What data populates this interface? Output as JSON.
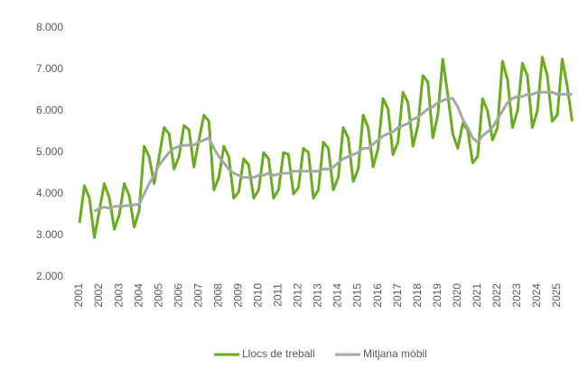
{
  "chart_data": {
    "type": "line",
    "categories": [
      "2001",
      null,
      null,
      null,
      "2002",
      null,
      null,
      null,
      "2003",
      null,
      null,
      null,
      "2004",
      null,
      null,
      null,
      "2005",
      null,
      null,
      null,
      "2006",
      null,
      null,
      null,
      "2007",
      null,
      null,
      null,
      "2008",
      null,
      null,
      null,
      "2009",
      null,
      null,
      null,
      "2010",
      null,
      null,
      null,
      "2011",
      null,
      null,
      null,
      "2012",
      null,
      null,
      null,
      "2013",
      null,
      null,
      null,
      "2014",
      null,
      null,
      null,
      "2015",
      null,
      null,
      null,
      "2016",
      null,
      null,
      null,
      "2017",
      null,
      null,
      null,
      "2018",
      null,
      null,
      null,
      "2019",
      null,
      null,
      null,
      "2020",
      null,
      null,
      null,
      "2021",
      null,
      null,
      null,
      "2022",
      null,
      null,
      null,
      "2023",
      null,
      null,
      null,
      "2024",
      null,
      null,
      null,
      "2025",
      null,
      null,
      null
    ],
    "series": [
      {
        "name": "Llocs de treball",
        "color": "#6aab1f",
        "values": [
          3300,
          4200,
          3900,
          2950,
          3600,
          4250,
          3900,
          3150,
          3500,
          4250,
          3950,
          3200,
          3600,
          5150,
          4900,
          4250,
          4900,
          5600,
          5450,
          4600,
          4900,
          5650,
          5550,
          4650,
          5300,
          5900,
          5750,
          4100,
          4400,
          5150,
          4900,
          3900,
          4050,
          4850,
          4700,
          3900,
          4100,
          5000,
          4850,
          3900,
          4100,
          5000,
          4950,
          4000,
          4150,
          5100,
          5000,
          3900,
          4100,
          5250,
          5100,
          4100,
          4400,
          5600,
          5350,
          4300,
          4600,
          5900,
          5600,
          4650,
          5100,
          6300,
          6050,
          4950,
          5250,
          6450,
          6200,
          5150,
          5650,
          6850,
          6700,
          5350,
          5900,
          7250,
          6400,
          5450,
          5100,
          5700,
          5550,
          4750,
          4900,
          6300,
          6000,
          5300,
          5600,
          7200,
          6750,
          5600,
          6000,
          7150,
          6850,
          5600,
          6000,
          7300,
          6850,
          5750,
          5900,
          7250,
          6600,
          5750
        ]
      },
      {
        "name": "Mitjana mòbil",
        "color": "#a6a6a6",
        "values": [
          null,
          null,
          null,
          3580,
          3650,
          3680,
          3660,
          3700,
          3700,
          3710,
          3720,
          3740,
          3750,
          4000,
          4250,
          4450,
          4700,
          4850,
          5000,
          5100,
          5150,
          5170,
          5180,
          5180,
          5250,
          5300,
          5350,
          5100,
          4900,
          4750,
          4600,
          4500,
          4450,
          4400,
          4400,
          4400,
          4450,
          4450,
          4500,
          4450,
          4480,
          4500,
          4500,
          4550,
          4550,
          4550,
          4550,
          4550,
          4550,
          4600,
          4600,
          4650,
          4750,
          4850,
          4900,
          4950,
          5000,
          5100,
          5100,
          5200,
          5300,
          5400,
          5450,
          5500,
          5600,
          5650,
          5700,
          5800,
          5850,
          5950,
          6050,
          6100,
          6200,
          6250,
          6300,
          6300,
          6100,
          5800,
          5600,
          5350,
          5250,
          5400,
          5500,
          5600,
          5800,
          6000,
          6200,
          6300,
          6350,
          6350,
          6400,
          6400,
          6450,
          6450,
          6450,
          6450,
          6400,
          6400,
          6400,
          6400
        ]
      }
    ],
    "ylim": [
      2000,
      8000
    ],
    "yticks": [
      {
        "value": 2000,
        "label": "2.000"
      },
      {
        "value": 3000,
        "label": "3.000"
      },
      {
        "value": 4000,
        "label": "4.000"
      },
      {
        "value": 5000,
        "label": "5.000"
      },
      {
        "value": 6000,
        "label": "6.000"
      },
      {
        "value": 7000,
        "label": "7.000"
      },
      {
        "value": 8000,
        "label": "8.000"
      }
    ],
    "grid": false,
    "legend": "bottom"
  }
}
